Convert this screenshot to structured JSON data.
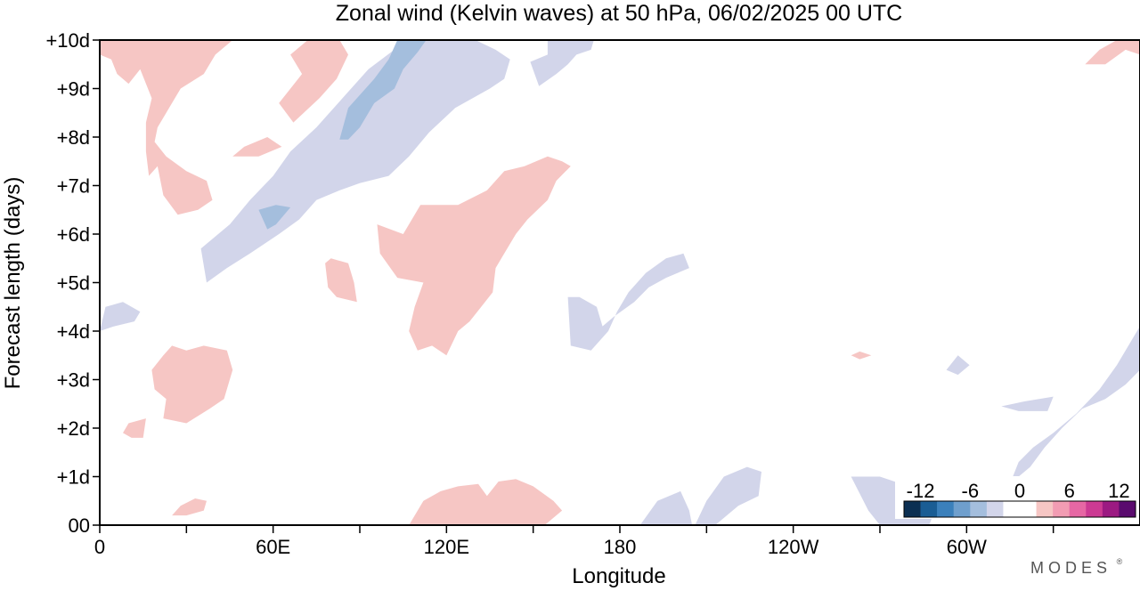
{
  "chart_data": {
    "type": "heatmap",
    "title": "Zonal wind (Kelvin waves) at 50 hPa,  06/02/2025  00 UTC",
    "xlabel": "Longitude",
    "ylabel": "Forecast length (days)",
    "x_ticks": [
      {
        "lon": 0,
        "label": "0"
      },
      {
        "lon": 60,
        "label": "60E"
      },
      {
        "lon": 120,
        "label": "120E"
      },
      {
        "lon": 180,
        "label": "180"
      },
      {
        "lon": 240,
        "label": "120W"
      },
      {
        "lon": 300,
        "label": "60W"
      }
    ],
    "x_minor_lons": [
      30,
      90,
      150,
      210,
      270,
      330
    ],
    "xlim": [
      0,
      360
    ],
    "y_ticks": [
      {
        "day": 0,
        "label": "00"
      },
      {
        "day": 1,
        "label": "+1d"
      },
      {
        "day": 2,
        "label": "+2d"
      },
      {
        "day": 3,
        "label": "+3d"
      },
      {
        "day": 4,
        "label": "+4d"
      },
      {
        "day": 5,
        "label": "+5d"
      },
      {
        "day": 6,
        "label": "+6d"
      },
      {
        "day": 7,
        "label": "+7d"
      },
      {
        "day": 8,
        "label": "+8d"
      },
      {
        "day": 9,
        "label": "+9d"
      },
      {
        "day": 10,
        "label": "+10d"
      }
    ],
    "ylim": [
      0,
      10
    ],
    "colorbar": {
      "levels": [
        -14,
        -12,
        -10,
        -8,
        -6,
        -4,
        -2,
        2,
        4,
        6,
        8,
        10,
        12,
        14
      ],
      "tick_values": [
        -12,
        -6,
        0,
        6,
        12
      ],
      "tick_labels": [
        "-12",
        "-6",
        "0",
        "6",
        "12"
      ],
      "colors": [
        "#0b2f52",
        "#1a5d94",
        "#3b80bb",
        "#6f9fcd",
        "#a4bedd",
        "#d2d5ea",
        "#ffffff",
        "#f6c6c4",
        "#f29cb3",
        "#e667a4",
        "#cc3a93",
        "#9c1a82",
        "#5a0b6e"
      ]
    },
    "regions": [
      {
        "category": "-4 to -2",
        "color": "#d2d5ea",
        "points": [
          [
            37,
            5.0
          ],
          [
            35,
            5.7
          ],
          [
            45,
            6.2
          ],
          [
            52,
            6.7
          ],
          [
            60,
            7.2
          ],
          [
            66,
            7.7
          ],
          [
            75,
            8.2
          ],
          [
            84,
            8.8
          ],
          [
            93,
            9.4
          ],
          [
            103,
            9.85
          ],
          [
            112,
            10
          ],
          [
            130,
            10
          ],
          [
            137,
            9.8
          ],
          [
            142,
            9.6
          ],
          [
            140,
            9.2
          ],
          [
            135,
            9.0
          ],
          [
            123,
            8.6
          ],
          [
            114,
            8.1
          ],
          [
            107,
            7.6
          ],
          [
            100,
            7.2
          ],
          [
            90,
            7.05
          ],
          [
            83,
            6.9
          ],
          [
            75,
            6.7
          ],
          [
            69,
            6.3
          ],
          [
            62,
            6.0
          ],
          [
            52,
            5.6
          ],
          [
            44,
            5.3
          ]
        ]
      },
      {
        "category": "-6 to -4",
        "color": "#a4bedd",
        "points": [
          [
            83,
            7.95
          ],
          [
            86,
            8.6
          ],
          [
            95,
            9.2
          ],
          [
            100,
            9.6
          ],
          [
            103,
            10
          ],
          [
            113,
            10
          ],
          [
            110,
            9.75
          ],
          [
            105,
            9.4
          ],
          [
            102,
            9.0
          ],
          [
            95,
            8.7
          ],
          [
            90,
            8.2
          ],
          [
            86,
            7.95
          ]
        ]
      },
      {
        "category": "-6 to -4",
        "color": "#a4bedd",
        "points": [
          [
            55,
            6.5
          ],
          [
            58,
            6.1
          ],
          [
            61,
            6.2
          ],
          [
            66,
            6.55
          ],
          [
            61,
            6.6
          ]
        ]
      },
      {
        "category": "-4 to -2",
        "color": "#d2d5ea",
        "points": [
          [
            155,
            10
          ],
          [
            155,
            9.7
          ],
          [
            149,
            9.55
          ],
          [
            152,
            9.05
          ],
          [
            158,
            9.3
          ],
          [
            162,
            9.5
          ],
          [
            165,
            9.7
          ],
          [
            170,
            9.8
          ],
          [
            171,
            10
          ]
        ]
      },
      {
        "category": "-4 to -2",
        "color": "#d2d5ea",
        "points": [
          [
            162,
            4.7
          ],
          [
            163,
            3.7
          ],
          [
            170,
            3.6
          ],
          [
            176,
            4.0
          ],
          [
            179,
            4.4
          ],
          [
            183,
            4.8
          ],
          [
            189,
            5.2
          ],
          [
            196,
            5.5
          ],
          [
            202,
            5.6
          ],
          [
            204,
            5.3
          ],
          [
            196,
            5.1
          ],
          [
            190,
            4.9
          ],
          [
            185,
            4.6
          ],
          [
            178,
            4.3
          ],
          [
            174,
            4.1
          ],
          [
            172,
            4.5
          ],
          [
            166,
            4.7
          ]
        ]
      },
      {
        "category": "-4 to -2",
        "color": "#d2d5ea",
        "points": [
          [
            0,
            4.0
          ],
          [
            2,
            4.5
          ],
          [
            8,
            4.6
          ],
          [
            14,
            4.4
          ],
          [
            12,
            4.2
          ],
          [
            5,
            4.1
          ]
        ]
      },
      {
        "category": "-4 to -2",
        "color": "#d2d5ea",
        "points": [
          [
            293,
            3.2
          ],
          [
            297,
            3.5
          ],
          [
            301,
            3.3
          ],
          [
            297,
            3.1
          ]
        ]
      },
      {
        "category": "-4 to -2",
        "color": "#d2d5ea",
        "points": [
          [
            260,
            1.0
          ],
          [
            270,
            1.0
          ],
          [
            280,
            0.8
          ],
          [
            286,
            0.6
          ],
          [
            289,
            0.3
          ],
          [
            287,
            0.0
          ],
          [
            270,
            0.0
          ],
          [
            266,
            0.3
          ]
        ]
      },
      {
        "category": "-4 to -2",
        "color": "#d2d5ea",
        "points": [
          [
            316,
            1.0
          ],
          [
            318,
            1.3
          ],
          [
            323,
            1.6
          ],
          [
            330,
            1.9
          ],
          [
            338,
            2.3
          ],
          [
            346,
            2.8
          ],
          [
            352,
            3.3
          ],
          [
            358,
            3.9
          ],
          [
            360,
            4.1
          ],
          [
            360,
            3.2
          ],
          [
            355,
            2.9
          ],
          [
            348,
            2.6
          ],
          [
            340,
            2.4
          ],
          [
            333,
            2.0
          ],
          [
            327,
            1.6
          ],
          [
            322,
            1.2
          ],
          [
            318,
            1.0
          ]
        ]
      },
      {
        "category": "-4 to -2",
        "color": "#d2d5ea",
        "points": [
          [
            312,
            2.45
          ],
          [
            320,
            2.55
          ],
          [
            330,
            2.65
          ],
          [
            328,
            2.35
          ],
          [
            318,
            2.35
          ]
        ]
      },
      {
        "category": "-4 to -2",
        "color": "#d2d5ea",
        "points": [
          [
            187,
            0.0
          ],
          [
            193,
            0.5
          ],
          [
            201,
            0.7
          ],
          [
            204,
            0.3
          ],
          [
            205,
            0.0
          ]
        ]
      },
      {
        "category": "-4 to -2",
        "color": "#d2d5ea",
        "points": [
          [
            206,
            0.0
          ],
          [
            210,
            0.5
          ],
          [
            216,
            1.0
          ],
          [
            224,
            1.2
          ],
          [
            229,
            1.1
          ],
          [
            228,
            0.6
          ],
          [
            221,
            0.4
          ],
          [
            213,
            0.0
          ]
        ]
      },
      {
        "category": "2 to 4",
        "color": "#f6c6c4",
        "points": [
          [
            0,
            10
          ],
          [
            25,
            10
          ],
          [
            35,
            10
          ],
          [
            46,
            10
          ],
          [
            40,
            9.7
          ],
          [
            36,
            9.3
          ],
          [
            28,
            9.0
          ],
          [
            24,
            8.6
          ],
          [
            20,
            8.2
          ],
          [
            19,
            7.9
          ],
          [
            23,
            7.6
          ],
          [
            30,
            7.3
          ],
          [
            37,
            7.1
          ],
          [
            39,
            6.7
          ],
          [
            34,
            6.5
          ],
          [
            27,
            6.4
          ],
          [
            22,
            6.8
          ],
          [
            20,
            7.4
          ],
          [
            17,
            7.2
          ],
          [
            16,
            7.7
          ],
          [
            16,
            8.3
          ],
          [
            18,
            8.8
          ],
          [
            14,
            9.4
          ],
          [
            10,
            9.1
          ],
          [
            6,
            9.3
          ],
          [
            4,
            9.6
          ],
          [
            0,
            9.7
          ]
        ]
      },
      {
        "category": "2 to 4",
        "color": "#f6c6c4",
        "points": [
          [
            62,
            8.7
          ],
          [
            70,
            9.3
          ],
          [
            66,
            9.7
          ],
          [
            72,
            10
          ],
          [
            83,
            10
          ],
          [
            86,
            9.7
          ],
          [
            82,
            9.2
          ],
          [
            76,
            8.8
          ],
          [
            67,
            8.3
          ]
        ]
      },
      {
        "category": "2 to 4",
        "color": "#f6c6c4",
        "points": [
          [
            46,
            7.6
          ],
          [
            50,
            7.8
          ],
          [
            58,
            8.0
          ],
          [
            63,
            7.8
          ],
          [
            55,
            7.6
          ]
        ]
      },
      {
        "category": "2 to 4",
        "color": "#f6c6c4",
        "points": [
          [
            107,
            4.0
          ],
          [
            109,
            4.5
          ],
          [
            112,
            5.0
          ],
          [
            103,
            5.1
          ],
          [
            97,
            5.6
          ],
          [
            96,
            6.2
          ],
          [
            105,
            6.0
          ],
          [
            111,
            6.6
          ],
          [
            124,
            6.6
          ],
          [
            134,
            6.9
          ],
          [
            140,
            7.3
          ],
          [
            147,
            7.4
          ],
          [
            155,
            7.6
          ],
          [
            160,
            7.5
          ],
          [
            163,
            7.4
          ],
          [
            158,
            7.1
          ],
          [
            155,
            6.7
          ],
          [
            148,
            6.3
          ],
          [
            144,
            6.0
          ],
          [
            140,
            5.6
          ],
          [
            137,
            5.3
          ],
          [
            136,
            4.8
          ],
          [
            132,
            4.5
          ],
          [
            128,
            4.2
          ],
          [
            124,
            4.0
          ],
          [
            120,
            3.5
          ],
          [
            115,
            3.7
          ],
          [
            110,
            3.6
          ]
        ]
      },
      {
        "category": "2 to 4",
        "color": "#f6c6c4",
        "points": [
          [
            78,
            5.4
          ],
          [
            80,
            5.5
          ],
          [
            86,
            5.4
          ],
          [
            88,
            5.0
          ],
          [
            89,
            4.6
          ],
          [
            82,
            4.7
          ],
          [
            79,
            4.9
          ]
        ]
      },
      {
        "category": "2 to 4",
        "color": "#f6c6c4",
        "points": [
          [
            22,
            2.2
          ],
          [
            23,
            2.6
          ],
          [
            19,
            2.8
          ],
          [
            18,
            3.2
          ],
          [
            22,
            3.5
          ],
          [
            25,
            3.7
          ],
          [
            30,
            3.6
          ],
          [
            36,
            3.7
          ],
          [
            44,
            3.6
          ],
          [
            46,
            3.2
          ],
          [
            43,
            2.6
          ],
          [
            38,
            2.4
          ],
          [
            30,
            2.1
          ]
        ]
      },
      {
        "category": "2 to 4",
        "color": "#f6c6c4",
        "points": [
          [
            8,
            1.9
          ],
          [
            10,
            2.1
          ],
          [
            16,
            2.2
          ],
          [
            15,
            1.8
          ],
          [
            11,
            1.8
          ]
        ]
      },
      {
        "category": "2 to 4",
        "color": "#f6c6c4",
        "points": [
          [
            25,
            0.2
          ],
          [
            28,
            0.4
          ],
          [
            33,
            0.55
          ],
          [
            37,
            0.5
          ],
          [
            36,
            0.3
          ],
          [
            30,
            0.2
          ]
        ]
      },
      {
        "category": "2 to 4",
        "color": "#f6c6c4",
        "points": [
          [
            107,
            0.0
          ],
          [
            112,
            0.5
          ],
          [
            118,
            0.7
          ],
          [
            124,
            0.8
          ],
          [
            131,
            0.85
          ],
          [
            134,
            0.6
          ],
          [
            138,
            0.9
          ],
          [
            144,
            0.95
          ],
          [
            150,
            0.8
          ],
          [
            157,
            0.5
          ],
          [
            160,
            0.3
          ],
          [
            154,
            0.0
          ]
        ]
      },
      {
        "category": "2 to 4",
        "color": "#f6c6c4",
        "points": [
          [
            341,
            9.5
          ],
          [
            346,
            9.8
          ],
          [
            352,
            10
          ],
          [
            360,
            10
          ],
          [
            360,
            9.7
          ],
          [
            355,
            9.8
          ],
          [
            348,
            9.5
          ]
        ]
      },
      {
        "category": "2 to 4",
        "color": "#f6c6c4",
        "points": [
          [
            260,
            3.5
          ],
          [
            263,
            3.58
          ],
          [
            267,
            3.5
          ],
          [
            263,
            3.42
          ]
        ]
      }
    ]
  },
  "brand": {
    "text": "MODES",
    "mark": "®"
  }
}
